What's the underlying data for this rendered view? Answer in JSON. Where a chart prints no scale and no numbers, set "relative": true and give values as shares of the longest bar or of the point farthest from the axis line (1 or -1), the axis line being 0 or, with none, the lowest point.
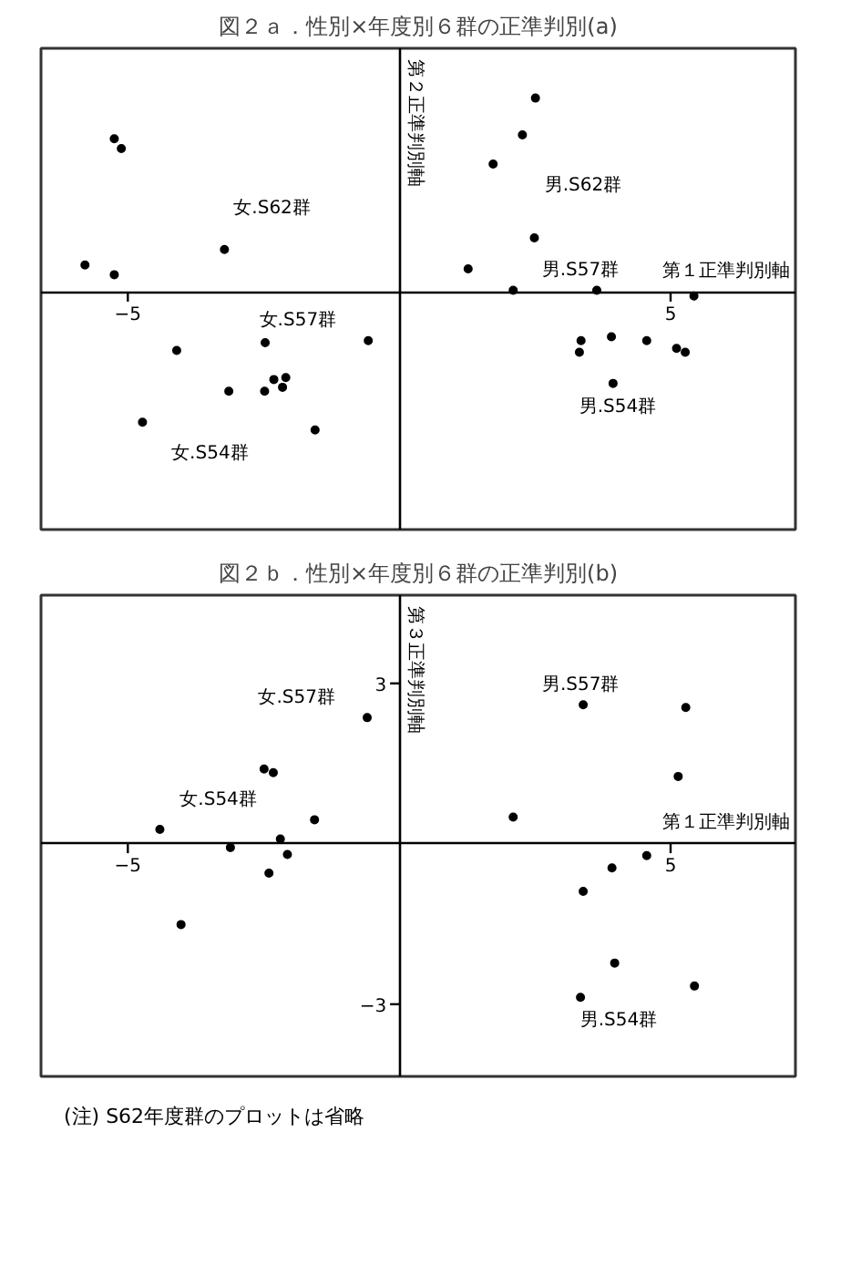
{
  "chart_data": [
    {
      "type": "scatter",
      "title": "図２ａ．性別×年度別６群の正準判別(a)",
      "xlabel": "第１正準判別軸",
      "ylabel": "第２正準判別軸",
      "relative": true,
      "xlim": [
        -6.6,
        7.3
      ],
      "xticks": [
        {
          "value": -5,
          "label": "−5"
        },
        5
      ],
      "tick_labels": "x",
      "marker": "circle",
      "legend": false,
      "grid": false,
      "series": [
        {
          "name": "女.S62群",
          "color": "#000000",
          "x": [
            -5.25,
            -5.12,
            -5.79,
            -5.25,
            -3.22
          ],
          "values": [
            0.79,
            0.74,
            0.14,
            0.09,
            0.22
          ]
        },
        {
          "name": "男.S62群",
          "color": "#000000",
          "x": [
            2.51,
            2.27,
            1.73,
            2.49,
            1.27
          ],
          "values": [
            1.0,
            0.81,
            0.66,
            0.28,
            0.12
          ]
        },
        {
          "name": "男.S57群",
          "color": "#000000",
          "x": [
            2.1,
            3.64,
            5.11,
            5.27
          ],
          "values": [
            0.01,
            0.01,
            -0.29,
            -0.31
          ]
        },
        {
          "name": "男.S54群",
          "color": "#000000",
          "x": [
            5.43,
            3.35,
            3.32,
            3.91,
            3.94,
            4.56
          ],
          "values": [
            -0.02,
            -0.25,
            -0.31,
            -0.23,
            -0.47,
            -0.25
          ]
        },
        {
          "name": "女.S57群",
          "color": "#000000",
          "x": [
            -2.47,
            -0.57,
            -2.31,
            -2.09,
            -2.15
          ],
          "values": [
            -0.26,
            -0.25,
            -0.45,
            -0.44,
            -0.49
          ]
        },
        {
          "name": "女.S54群",
          "color": "#000000",
          "x": [
            -4.1,
            -3.14,
            -2.48,
            -4.73,
            -1.55
          ],
          "values": [
            -0.3,
            -0.51,
            -0.51,
            -0.67,
            -0.71
          ]
        }
      ]
    },
    {
      "type": "scatter",
      "title": "図２ｂ．性別×年度別６群の正準判別(b)",
      "xlabel": "第１正準判別軸",
      "ylabel": "第３正準判別軸",
      "xlim": [
        -6.6,
        7.3
      ],
      "ylim": [
        -4.35,
        4.65
      ],
      "xticks": [
        {
          "value": -5,
          "label": "−5"
        },
        5
      ],
      "yticks": [
        3,
        {
          "value": -3,
          "label": "−3"
        }
      ],
      "marker": "circle",
      "legend": false,
      "grid": false,
      "annotations": [
        "(注) S62年度群のプロットは省略"
      ],
      "series": [
        {
          "name": "女.S57群",
          "color": "#000000",
          "x": [
            -0.59,
            -2.49,
            -2.32,
            -2.19,
            -2.06
          ],
          "values": [
            2.36,
            1.4,
            1.33,
            0.09,
            -0.2
          ]
        },
        {
          "name": "男.S57群",
          "color": "#000000",
          "x": [
            3.39,
            5.28,
            5.14,
            2.1,
            4.56
          ],
          "values": [
            2.6,
            2.55,
            1.26,
            0.5,
            -0.22
          ]
        },
        {
          "name": "女.S54群",
          "color": "#000000",
          "x": [
            -4.41,
            -3.11,
            -1.56,
            -2.4,
            -4.02
          ],
          "values": [
            0.27,
            -0.07,
            0.45,
            -0.55,
            -1.51
          ]
        },
        {
          "name": "男.S54群",
          "color": "#000000",
          "x": [
            3.92,
            3.39,
            3.97,
            3.34,
            5.44
          ],
          "values": [
            -0.45,
            -0.89,
            -2.23,
            -2.87,
            -2.66
          ]
        }
      ]
    }
  ]
}
